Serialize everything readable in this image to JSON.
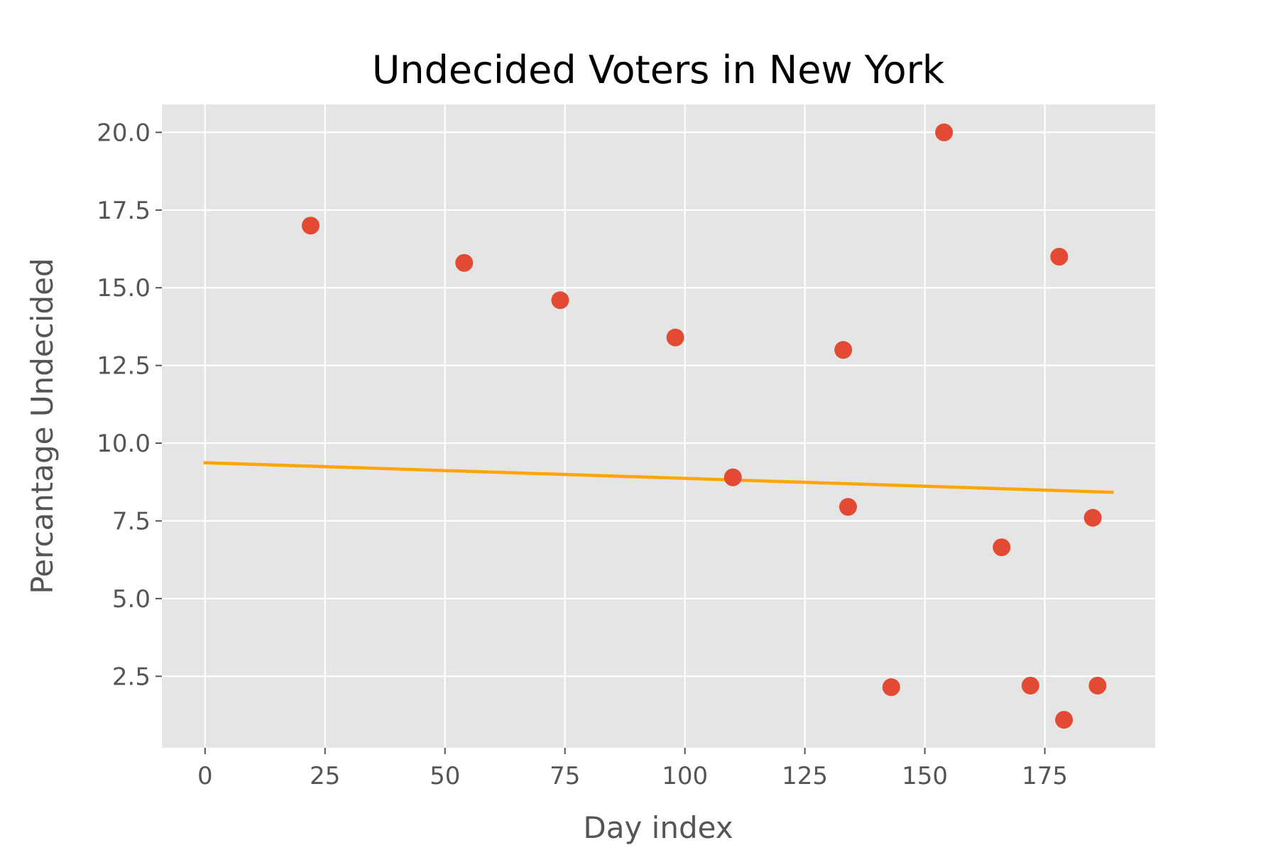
{
  "chart_data": {
    "type": "scatter",
    "title": "Undecided Voters in New York",
    "xlabel": "Day index",
    "ylabel": "Percantage Undecided",
    "xlim": [
      -9,
      198
    ],
    "ylim": [
      0.2,
      20.9
    ],
    "xticks": [
      0,
      25,
      50,
      75,
      100,
      125,
      150,
      175
    ],
    "xtick_labels": [
      "0",
      "25",
      "50",
      "75",
      "100",
      "125",
      "150",
      "175"
    ],
    "yticks": [
      2.5,
      5.0,
      7.5,
      10.0,
      12.5,
      15.0,
      17.5,
      20.0
    ],
    "ytick_labels": [
      "2.5",
      "5.0",
      "7.5",
      "10.0",
      "12.5",
      "15.0",
      "17.5",
      "20.0"
    ],
    "grid": true,
    "style": "ggplot",
    "colors": {
      "background": "#e5e5e5",
      "grid": "#ffffff",
      "points": "#e24a33",
      "trendline": "#ffa500"
    },
    "points": [
      {
        "x": 22,
        "y": 17.0
      },
      {
        "x": 54,
        "y": 15.8
      },
      {
        "x": 74,
        "y": 14.6
      },
      {
        "x": 98,
        "y": 13.4
      },
      {
        "x": 110,
        "y": 8.9
      },
      {
        "x": 133,
        "y": 13.0
      },
      {
        "x": 134,
        "y": 7.95
      },
      {
        "x": 143,
        "y": 2.15
      },
      {
        "x": 154,
        "y": 20.0
      },
      {
        "x": 166,
        "y": 6.65
      },
      {
        "x": 172,
        "y": 2.2
      },
      {
        "x": 178,
        "y": 16.0
      },
      {
        "x": 179,
        "y": 1.1
      },
      {
        "x": 185,
        "y": 7.6
      },
      {
        "x": 186,
        "y": 2.2
      }
    ],
    "trendline": {
      "x": [
        0,
        189
      ],
      "y": [
        9.37,
        8.42
      ]
    }
  }
}
